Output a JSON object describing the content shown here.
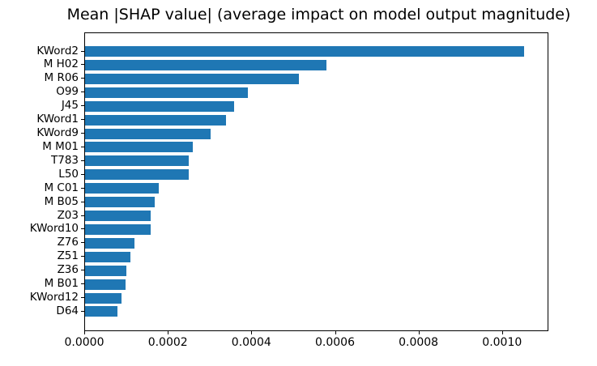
{
  "chart_data": {
    "type": "bar",
    "orientation": "horizontal",
    "title": "Mean |SHAP value| (average impact on model output magnitude)",
    "xlabel": "",
    "ylabel": "",
    "categories_top_to_bottom": [
      "KWord2",
      "M H02",
      "M R06",
      "O99",
      "J45",
      "KWord1",
      "KWord9",
      "M M01",
      "T783",
      "L50",
      "M C01",
      "M B05",
      "Z03",
      "KWord10",
      "Z76",
      "Z51",
      "Z36",
      "M B01",
      "KWord12",
      "D64"
    ],
    "values": [
      0.00105,
      0.000578,
      0.000511,
      0.000389,
      0.000357,
      0.000337,
      0.0003,
      0.000257,
      0.000249,
      0.000248,
      0.000177,
      0.000166,
      0.000157,
      0.000156,
      0.000119,
      0.000108,
      9.8e-05,
      9.7e-05,
      8.76e-05,
      7.74e-05
    ],
    "xlim": [
      0,
      0.001107
    ],
    "xticks": [
      0,
      0.0002,
      0.0004,
      0.0006,
      0.0008,
      0.001
    ],
    "xtick_labels": [
      "0.0000",
      "0.0002",
      "0.0004",
      "0.0006",
      "0.0008",
      "0.0010"
    ],
    "grid": false,
    "legend": null,
    "bar_color": "#1f77b4",
    "spine_color": "#000000",
    "text_color": "#000000",
    "background_color": "#ffffff"
  }
}
